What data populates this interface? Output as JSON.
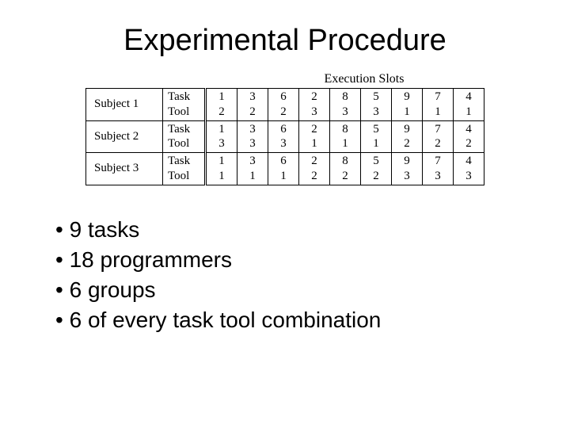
{
  "title": "Experimental Procedure",
  "table": {
    "caption": "Execution Slots",
    "subjects": [
      "Subject 1",
      "Subject 2",
      "Subject 3"
    ],
    "row_labels": [
      "Task",
      "Tool"
    ],
    "data": [
      {
        "task": [
          "1",
          "3",
          "6",
          "2",
          "8",
          "5",
          "9",
          "7",
          "4"
        ],
        "tool": [
          "2",
          "2",
          "2",
          "3",
          "3",
          "3",
          "1",
          "1",
          "1"
        ]
      },
      {
        "task": [
          "1",
          "3",
          "6",
          "2",
          "8",
          "5",
          "9",
          "7",
          "4"
        ],
        "tool": [
          "3",
          "3",
          "3",
          "1",
          "1",
          "1",
          "2",
          "2",
          "2"
        ]
      },
      {
        "task": [
          "1",
          "3",
          "6",
          "2",
          "8",
          "5",
          "9",
          "7",
          "4"
        ],
        "tool": [
          "1",
          "1",
          "1",
          "2",
          "2",
          "2",
          "3",
          "3",
          "3"
        ]
      }
    ]
  },
  "bullets": [
    "9 tasks",
    "18 programmers",
    "6 groups",
    "6 of every task tool combination"
  ]
}
